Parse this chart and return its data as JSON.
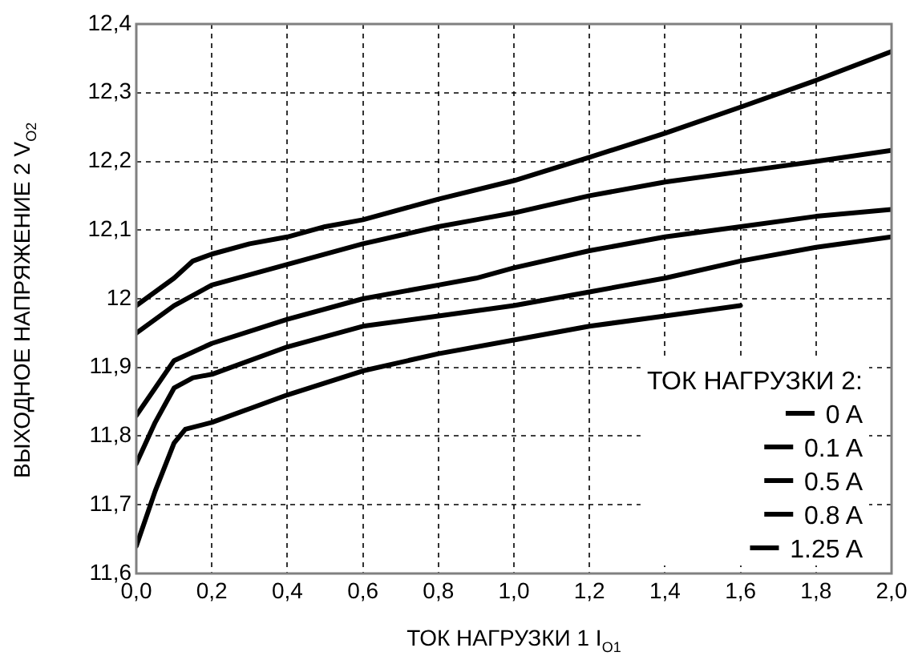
{
  "chart_data": {
    "type": "line",
    "xlabel": "ТОК НАГРУЗКИ 1 I$_{O1}$",
    "ylabel": "ВЫХОДНОЕ НАПРЯЖЕНИЕ 2 V$_{O2}$",
    "legend_title": "ТОК НАГРУЗКИ 2:",
    "legend": "bottom right",
    "grid": true,
    "line_style": "solid",
    "marker": "none",
    "xlim": [
      0,
      2
    ],
    "xticks": [
      {
        "value": 0,
        "label": "0,0"
      },
      {
        "value": 0.2,
        "label": "0,2"
      },
      {
        "value": 0.4,
        "label": "0,4"
      },
      {
        "value": 0.6,
        "label": "0,6"
      },
      {
        "value": 0.8,
        "label": "0,8"
      },
      {
        "value": 1,
        "label": "1,0"
      },
      {
        "value": 1.2,
        "label": "1,2"
      },
      {
        "value": 1.4,
        "label": "1,4"
      },
      {
        "value": 1.6,
        "label": "1,6"
      },
      {
        "value": 1.8,
        "label": "1,8"
      },
      {
        "value": 2,
        "label": "2,0"
      }
    ],
    "ylim": [
      11.6,
      12.4
    ],
    "yticks": [
      {
        "value": 11.6,
        "label": "11,6"
      },
      {
        "value": 11.7,
        "label": "11,7"
      },
      {
        "value": 11.8,
        "label": "11,8"
      },
      {
        "value": 11.9,
        "label": "11,9"
      },
      {
        "value": 12,
        "label": "12"
      },
      {
        "value": 12.1,
        "label": "12,1"
      },
      {
        "value": 12.2,
        "label": "12,2"
      },
      {
        "value": 12.3,
        "label": "12,3"
      },
      {
        "value": 12.4,
        "label": "12,4"
      }
    ],
    "series": [
      {
        "name": "0 A",
        "color": "#000000",
        "x": [
          0,
          0.1,
          0.15,
          0.2,
          0.3,
          0.4,
          0.5,
          0.6,
          0.8,
          1.0,
          1.2,
          1.4,
          1.6,
          1.8,
          2.0
        ],
        "values": [
          11.99,
          12.03,
          12.055,
          12.065,
          12.08,
          12.09,
          12.105,
          12.115,
          12.145,
          12.172,
          12.206,
          12.241,
          12.279,
          12.318,
          12.36
        ]
      },
      {
        "name": "0.1 A",
        "color": "#000000",
        "x": [
          0,
          0.1,
          0.2,
          0.4,
          0.6,
          0.8,
          0.9,
          1.0,
          1.2,
          1.4,
          1.6,
          1.8,
          2.0
        ],
        "values": [
          11.95,
          11.99,
          12.02,
          12.05,
          12.08,
          12.105,
          12.115,
          12.125,
          12.15,
          12.17,
          12.185,
          12.2,
          12.216
        ]
      },
      {
        "name": "0.5 A",
        "color": "#000000",
        "x": [
          0,
          0.05,
          0.1,
          0.2,
          0.4,
          0.6,
          0.8,
          0.9,
          1.0,
          1.2,
          1.4,
          1.6,
          1.8,
          2.0
        ],
        "values": [
          11.83,
          11.87,
          11.91,
          11.935,
          11.97,
          12.0,
          12.02,
          12.03,
          12.045,
          12.07,
          12.09,
          12.105,
          12.12,
          12.13
        ]
      },
      {
        "name": "0.8 A",
        "color": "#000000",
        "x": [
          0,
          0.05,
          0.1,
          0.15,
          0.2,
          0.4,
          0.6,
          0.8,
          1.0,
          1.2,
          1.4,
          1.6,
          1.8,
          2.0
        ],
        "values": [
          11.76,
          11.82,
          11.87,
          11.885,
          11.89,
          11.93,
          11.96,
          11.975,
          11.99,
          12.01,
          12.03,
          12.055,
          12.075,
          12.09
        ]
      },
      {
        "name": "1.25 A",
        "color": "#000000",
        "x": [
          0,
          0.05,
          0.1,
          0.13,
          0.2,
          0.3,
          0.4,
          0.6,
          0.8,
          1.0,
          1.2,
          1.4,
          1.6
        ],
        "values": [
          11.64,
          11.72,
          11.79,
          11.81,
          11.82,
          11.84,
          11.86,
          11.895,
          11.92,
          11.94,
          11.96,
          11.975,
          11.99
        ]
      }
    ]
  }
}
